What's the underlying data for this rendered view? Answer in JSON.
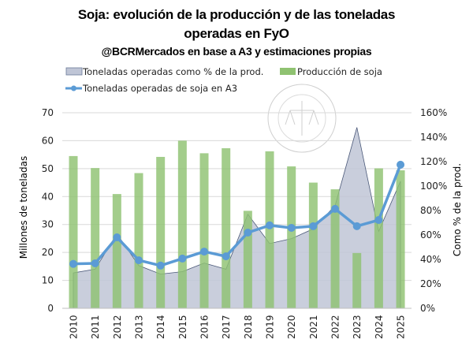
{
  "chart_data": {
    "type": "bar+line+area",
    "title": "Soja: evolución de la producción y de las toneladas",
    "title_line2": "operadas en FyO",
    "subtitle": "@BCRMercados en base a A3 y estimaciones propias",
    "watermark": "BOLSA DE COMERCIO DE ROSARIO",
    "categories": [
      "2010",
      "2011",
      "2012",
      "2013",
      "2014",
      "2015",
      "2016",
      "2017",
      "2018",
      "2019",
      "2020",
      "2021",
      "2022",
      "2023",
      "2024",
      "2025"
    ],
    "ylabel": "Millones de toneladas",
    "y2label": "Como % de la prod.",
    "ylim": [
      0,
      70
    ],
    "yticks": [
      "0",
      "10",
      "20",
      "30",
      "40",
      "50",
      "60",
      "70"
    ],
    "y2lim": [
      0,
      160
    ],
    "y2ticks": [
      "0%",
      "20%",
      "40%",
      "60%",
      "80%",
      "100%",
      "120%",
      "140%",
      "160%"
    ],
    "grid": true,
    "legend_position": "top-left",
    "series": [
      {
        "name": "Toneladas operadas como % de la prod.",
        "type": "area",
        "axis": "right",
        "color": "#bfc5d6",
        "values": [
          29,
          32,
          61,
          35,
          28,
          30,
          37,
          32,
          77,
          53,
          57,
          65,
          84,
          148,
          63,
          104
        ]
      },
      {
        "name": "Producción de soja",
        "type": "bar",
        "axis": "left",
        "color": "#8fc271",
        "values": [
          54.5,
          50.2,
          40.9,
          48.4,
          54.2,
          60.0,
          55.5,
          57.3,
          34.9,
          56.2,
          50.8,
          45.0,
          42.6,
          19.8,
          50.1,
          49.4
        ]
      },
      {
        "name": "Toneladas operadas de soja en A3",
        "type": "line",
        "axis": "left",
        "color": "#5b9bd5",
        "values": [
          15.9,
          16.1,
          25.4,
          17.2,
          15.3,
          17.8,
          20.3,
          18.6,
          27.1,
          29.7,
          28.8,
          29.4,
          35.6,
          29.4,
          31.6,
          51.4
        ]
      }
    ]
  }
}
